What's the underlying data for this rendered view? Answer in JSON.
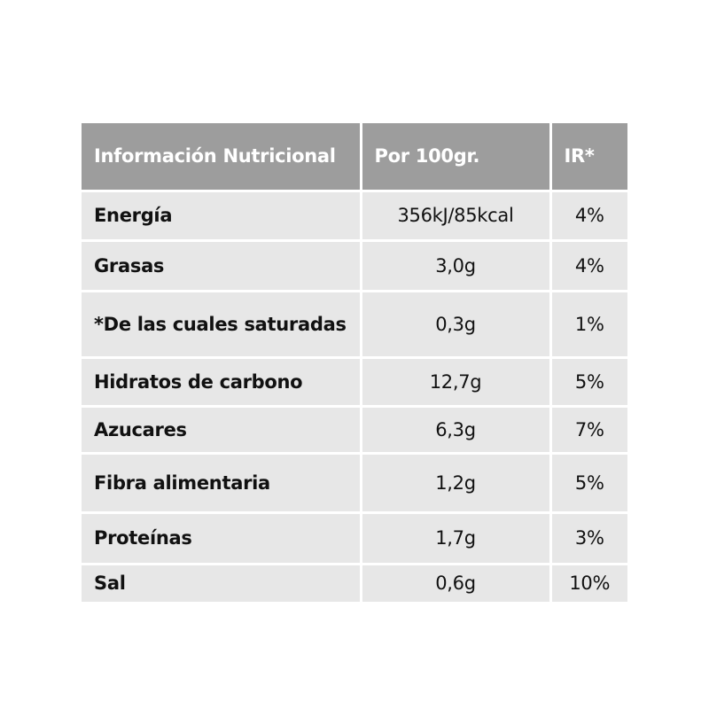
{
  "table": {
    "headers": {
      "name": "Información Nutricional",
      "value": "Por 100gr.",
      "ir": "IR*"
    },
    "rows": [
      {
        "name": "Energía",
        "value": "356kJ/85kcal",
        "ir": "4%"
      },
      {
        "name": "Grasas",
        "value": "3,0g",
        "ir": "4%"
      },
      {
        "name": "*De las cuales saturadas",
        "value": "0,3g",
        "ir": "1%"
      },
      {
        "name": "Hidratos de carbono",
        "value": "12,7g",
        "ir": "5%"
      },
      {
        "name": "Azucares",
        "value": "6,3g",
        "ir": "7%"
      },
      {
        "name": "Fibra alimentaria",
        "value": "1,2g",
        "ir": "5%"
      },
      {
        "name": "Proteínas",
        "value": "1,7g",
        "ir": "3%"
      },
      {
        "name": "Sal",
        "value": "0,6g",
        "ir": "10%"
      }
    ]
  },
  "colors": {
    "header_bg": "#9d9d9d",
    "header_text": "#ffffff",
    "row_bg": "#e7e7e7",
    "row_text": "#111111",
    "divider": "#ffffff"
  }
}
